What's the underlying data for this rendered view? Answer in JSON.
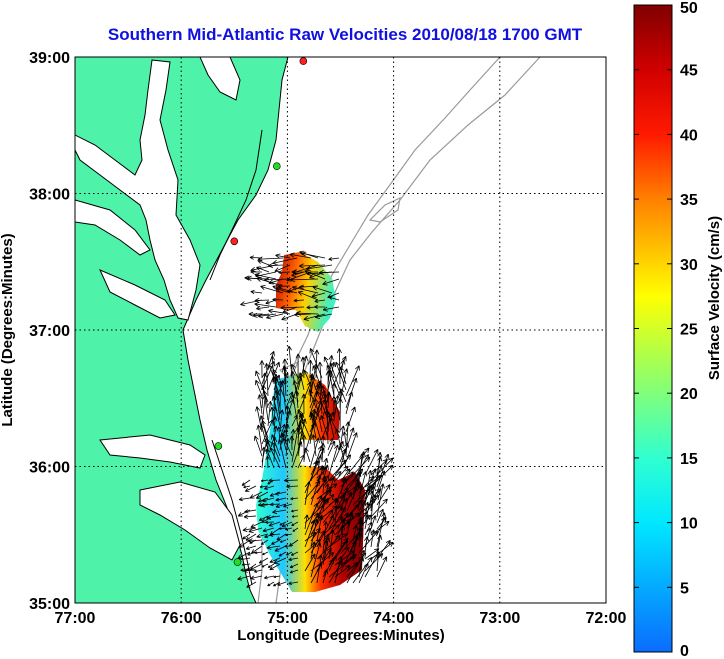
{
  "title": "Southern Mid-Atlantic Raw Velocities 2010/08/18 1700 GMT",
  "map": {
    "xlabel": "Longitude (Degrees:Minutes)",
    "ylabel": "Latitude (Degrees:Minutes)",
    "lon_range": [
      -77,
      -72
    ],
    "lat_range": [
      35,
      39
    ],
    "lon_ticks": [
      {
        "value": -77,
        "label": "77:00"
      },
      {
        "value": -76,
        "label": "76:00"
      },
      {
        "value": -75,
        "label": "75:00"
      },
      {
        "value": -74,
        "label": "74:00"
      },
      {
        "value": -73,
        "label": "73:00"
      },
      {
        "value": -72,
        "label": "72:00"
      }
    ],
    "lat_ticks": [
      {
        "value": 35,
        "label": "35:00"
      },
      {
        "value": 36,
        "label": "36:00"
      },
      {
        "value": 37,
        "label": "37:00"
      },
      {
        "value": 38,
        "label": "38:00"
      },
      {
        "value": 39,
        "label": "39:00"
      }
    ],
    "grid": "dotted",
    "colors": {
      "land": "#4ef2a8",
      "coast": "#000000",
      "bathymetry": "#9a9a9a",
      "grid": "#000000",
      "title": "#1010e0"
    },
    "stations": [
      {
        "lon": -74.85,
        "lat": 38.97,
        "color": "#ff2020"
      },
      {
        "lon": -75.1,
        "lat": 38.2,
        "color": "#22dd22"
      },
      {
        "lon": -75.5,
        "lat": 37.65,
        "color": "#ff2020"
      },
      {
        "lon": -75.65,
        "lat": 36.15,
        "color": "#22dd22"
      },
      {
        "lon": -75.47,
        "lat": 35.3,
        "color": "#22dd22"
      }
    ]
  },
  "colorbar": {
    "label": "Surface Velocity (cm/s)",
    "min": 0,
    "max": 50,
    "ticks": [
      {
        "value": 0,
        "label": "0"
      },
      {
        "value": 5,
        "label": "5"
      },
      {
        "value": 10,
        "label": "10"
      },
      {
        "value": 15,
        "label": "15"
      },
      {
        "value": 20,
        "label": "20"
      },
      {
        "value": 25,
        "label": "25"
      },
      {
        "value": 30,
        "label": "30"
      },
      {
        "value": 35,
        "label": "35"
      },
      {
        "value": 40,
        "label": "40"
      },
      {
        "value": 45,
        "label": "45"
      },
      {
        "value": 50,
        "label": "50"
      }
    ],
    "colormap": "jet"
  }
}
